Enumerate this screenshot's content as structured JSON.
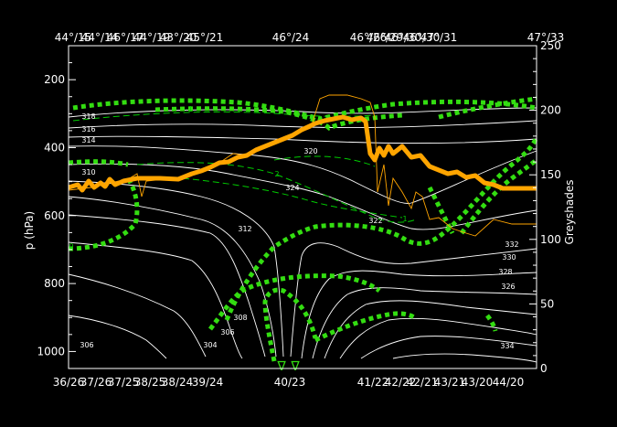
{
  "chart_data": {
    "type": "line",
    "top_tick_labels": [
      "44°/15",
      "44°/14",
      "46°/17",
      "44°/19",
      "43°/20",
      "45°/21",
      "46°/24",
      "46°/26",
      "46°/29",
      "46°/30",
      "46°/30",
      "47°/31",
      "47°/33"
    ],
    "bottom_tick_labels": [
      "36/26",
      "37/26",
      "37/25",
      "38/25",
      "38/24",
      "39/24",
      "40/23",
      "41/22",
      "42/22",
      "42/21",
      "43/21",
      "43/20",
      "44/20"
    ],
    "ylabel": "p (hPa)",
    "y_tick_labels": [
      "200",
      "400",
      "600",
      "800",
      "1000"
    ],
    "ylim": [
      1050,
      100
    ],
    "y2label": "Greyshades",
    "y2_tick_labels": [
      "0",
      "50",
      "100",
      "150",
      "200",
      "250"
    ],
    "y2lim": [
      0,
      250
    ],
    "colors": {
      "background": "#000000",
      "isentrope": "#ffffff",
      "tropopause": "#ffa500",
      "pv": "#33dd11",
      "pv_dashed": "#00cc00"
    },
    "isentrope_labels": [
      "306",
      "304",
      "306",
      "308",
      "310",
      "312",
      "314",
      "316",
      "318",
      "320",
      "322",
      "324",
      "326",
      "328",
      "330",
      "332",
      "334"
    ],
    "pv_labels": [
      "2",
      "1",
      "-1",
      "0"
    ],
    "markers": [
      "∇",
      "∇"
    ]
  }
}
